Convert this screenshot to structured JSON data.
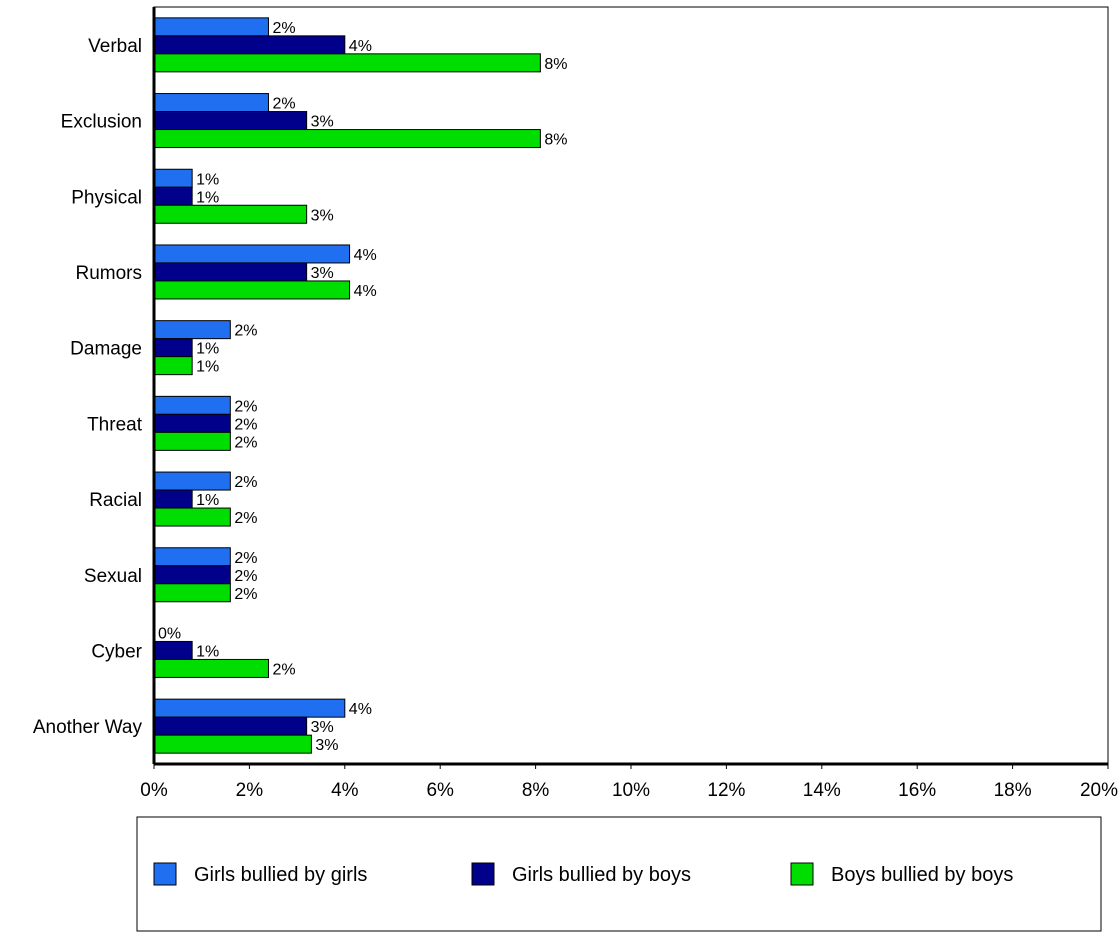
{
  "chart_data": {
    "type": "bar",
    "orientation": "horizontal",
    "title": "",
    "xlabel": "",
    "ylabel": "",
    "categories": [
      "Verbal",
      "Exclusion",
      "Physical",
      "Rumors",
      "Damage",
      "Threat",
      "Racial",
      "Sexual",
      "Cyber",
      "Another Way"
    ],
    "series": [
      {
        "name": "Girls bullied by girls",
        "color": "#1f6ff0",
        "values": [
          2.4,
          2.4,
          0.8,
          4.1,
          1.6,
          1.6,
          1.6,
          1.6,
          0.0,
          4.0
        ],
        "labels": [
          "2%",
          "2%",
          "1%",
          "4%",
          "2%",
          "2%",
          "2%",
          "2%",
          "0%",
          "4%"
        ]
      },
      {
        "name": "Girls bullied by boys",
        "color": "#00008b",
        "values": [
          4.0,
          3.2,
          0.8,
          3.2,
          0.8,
          1.6,
          0.8,
          1.6,
          0.8,
          3.2
        ],
        "labels": [
          "4%",
          "3%",
          "1%",
          "3%",
          "1%",
          "2%",
          "1%",
          "2%",
          "1%",
          "3%"
        ]
      },
      {
        "name": "Boys bullied by boys",
        "color": "#00dd00",
        "values": [
          8.1,
          8.1,
          3.2,
          4.1,
          0.8,
          1.6,
          1.6,
          1.6,
          2.4,
          3.3
        ],
        "labels": [
          "8%",
          "8%",
          "3%",
          "4%",
          "1%",
          "2%",
          "2%",
          "2%",
          "2%",
          "3%"
        ]
      }
    ],
    "xlim": [
      0,
      20
    ],
    "ticks": [
      {
        "value": 0,
        "label": "0%"
      },
      {
        "value": 2,
        "label": "2%"
      },
      {
        "value": 4,
        "label": "4%"
      },
      {
        "value": 6,
        "label": "6%"
      },
      {
        "value": 8,
        "label": "8%"
      },
      {
        "value": 10,
        "label": "10%"
      },
      {
        "value": 12,
        "label": "12%"
      },
      {
        "value": 14,
        "label": "14%"
      },
      {
        "value": 16,
        "label": "16%"
      },
      {
        "value": 18,
        "label": "18%"
      },
      {
        "value": 20,
        "label": "20%"
      }
    ],
    "grid": false,
    "legend_position": "bottom"
  }
}
